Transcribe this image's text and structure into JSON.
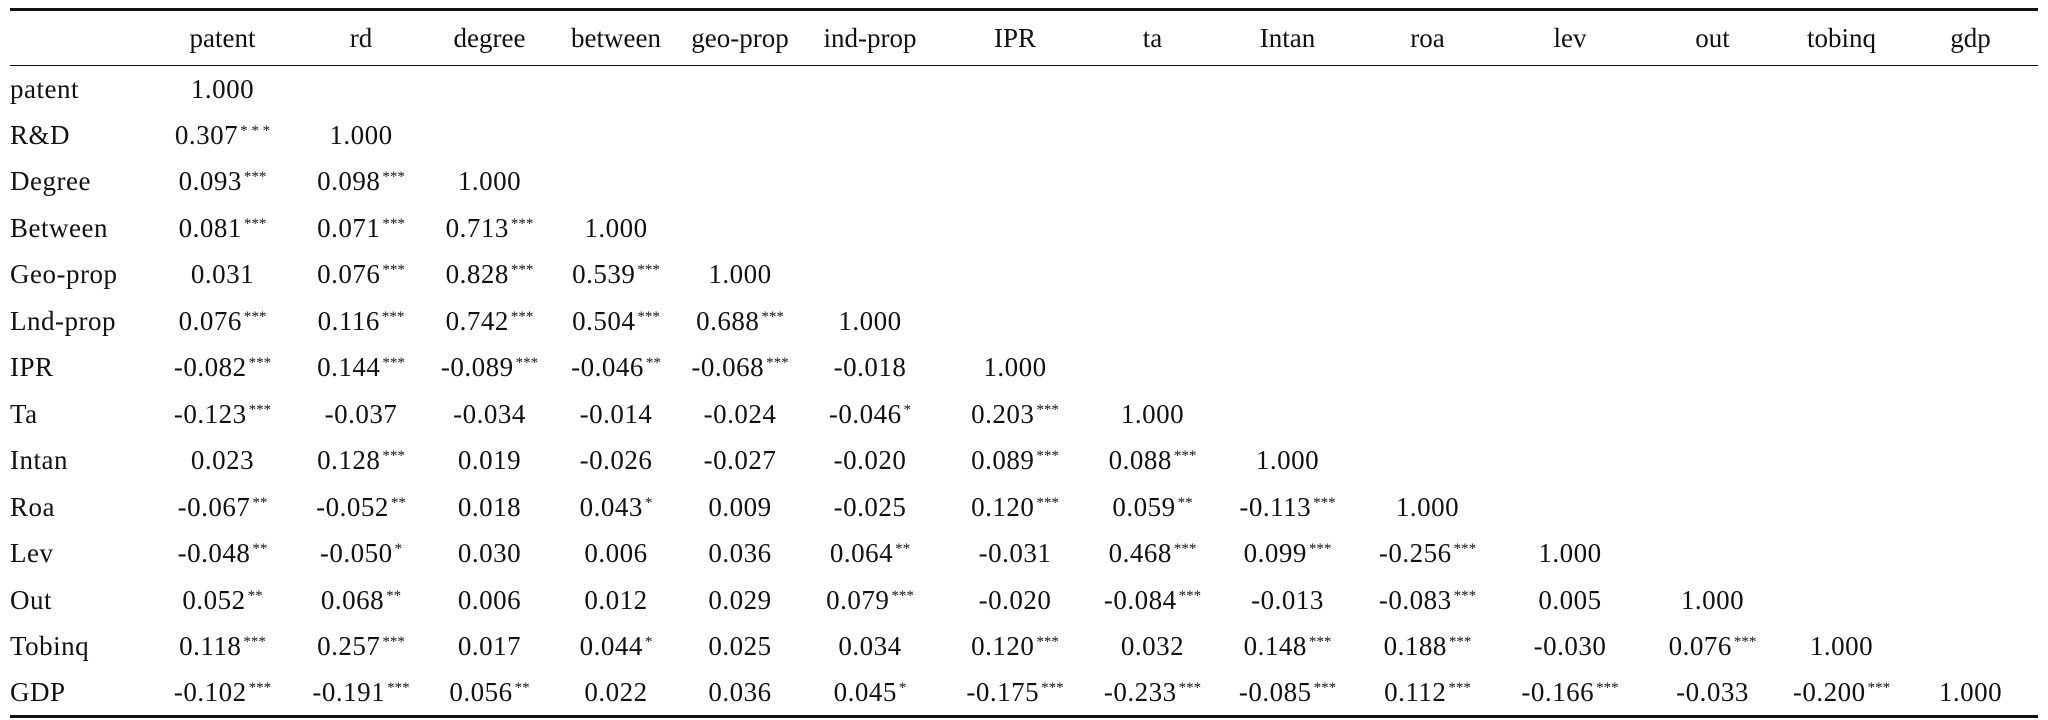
{
  "table": {
    "row_header_label": "",
    "columns": [
      "patent",
      "rd",
      "degree",
      "between",
      "geo-prop",
      "ind-prop",
      "IPR",
      "ta",
      "Intan",
      "roa",
      "lev",
      "out",
      "tobinq",
      "gdp"
    ],
    "rows": [
      {
        "label": "patent",
        "cells": [
          {
            "v": "1.000",
            "s": ""
          }
        ]
      },
      {
        "label": "R&D",
        "cells": [
          {
            "v": "0.307",
            "s": "* * *"
          },
          {
            "v": "1.000",
            "s": ""
          }
        ]
      },
      {
        "label": "Degree",
        "cells": [
          {
            "v": "0.093",
            "s": "***"
          },
          {
            "v": "0.098",
            "s": "***"
          },
          {
            "v": "1.000",
            "s": ""
          }
        ]
      },
      {
        "label": "Between",
        "cells": [
          {
            "v": "0.081",
            "s": "***"
          },
          {
            "v": "0.071",
            "s": "***"
          },
          {
            "v": "0.713",
            "s": "***"
          },
          {
            "v": "1.000",
            "s": ""
          }
        ]
      },
      {
        "label": "Geo-prop",
        "cells": [
          {
            "v": "0.031",
            "s": ""
          },
          {
            "v": "0.076",
            "s": "***"
          },
          {
            "v": "0.828",
            "s": "***"
          },
          {
            "v": "0.539",
            "s": "***"
          },
          {
            "v": "1.000",
            "s": ""
          }
        ]
      },
      {
        "label": "Lnd-prop",
        "cells": [
          {
            "v": "0.076",
            "s": "***"
          },
          {
            "v": "0.116",
            "s": "***"
          },
          {
            "v": "0.742",
            "s": "***"
          },
          {
            "v": "0.504",
            "s": "***"
          },
          {
            "v": "0.688",
            "s": "***"
          },
          {
            "v": "1.000",
            "s": ""
          }
        ]
      },
      {
        "label": "IPR",
        "cells": [
          {
            "v": "-0.082",
            "s": "***"
          },
          {
            "v": "0.144",
            "s": "***"
          },
          {
            "v": "-0.089",
            "s": "***"
          },
          {
            "v": "-0.046",
            "s": "**"
          },
          {
            "v": "-0.068",
            "s": "***"
          },
          {
            "v": "-0.018",
            "s": ""
          },
          {
            "v": "1.000",
            "s": ""
          }
        ]
      },
      {
        "label": "Ta",
        "cells": [
          {
            "v": "-0.123",
            "s": "***"
          },
          {
            "v": "-0.037",
            "s": ""
          },
          {
            "v": "-0.034",
            "s": ""
          },
          {
            "v": "-0.014",
            "s": ""
          },
          {
            "v": "-0.024",
            "s": ""
          },
          {
            "v": "-0.046",
            "s": "*"
          },
          {
            "v": "0.203",
            "s": "***"
          },
          {
            "v": "1.000",
            "s": ""
          }
        ]
      },
      {
        "label": "Intan",
        "cells": [
          {
            "v": "0.023",
            "s": ""
          },
          {
            "v": "0.128",
            "s": "***"
          },
          {
            "v": "0.019",
            "s": ""
          },
          {
            "v": "-0.026",
            "s": ""
          },
          {
            "v": "-0.027",
            "s": ""
          },
          {
            "v": "-0.020",
            "s": ""
          },
          {
            "v": "0.089",
            "s": "***"
          },
          {
            "v": "0.088",
            "s": "***"
          },
          {
            "v": "1.000",
            "s": ""
          }
        ]
      },
      {
        "label": "Roa",
        "cells": [
          {
            "v": "-0.067",
            "s": "**"
          },
          {
            "v": "-0.052",
            "s": "**"
          },
          {
            "v": "0.018",
            "s": ""
          },
          {
            "v": "0.043",
            "s": "*"
          },
          {
            "v": "0.009",
            "s": ""
          },
          {
            "v": "-0.025",
            "s": ""
          },
          {
            "v": "0.120",
            "s": "***"
          },
          {
            "v": "0.059",
            "s": "**"
          },
          {
            "v": "-0.113",
            "s": "***"
          },
          {
            "v": "1.000",
            "s": ""
          }
        ]
      },
      {
        "label": "Lev",
        "cells": [
          {
            "v": "-0.048",
            "s": "**"
          },
          {
            "v": "-0.050",
            "s": "*"
          },
          {
            "v": "0.030",
            "s": ""
          },
          {
            "v": "0.006",
            "s": ""
          },
          {
            "v": "0.036",
            "s": ""
          },
          {
            "v": "0.064",
            "s": "**"
          },
          {
            "v": "-0.031",
            "s": ""
          },
          {
            "v": "0.468",
            "s": "***"
          },
          {
            "v": "0.099",
            "s": "***"
          },
          {
            "v": "-0.256",
            "s": "***"
          },
          {
            "v": "1.000",
            "s": ""
          }
        ]
      },
      {
        "label": "Out",
        "cells": [
          {
            "v": "0.052",
            "s": "**"
          },
          {
            "v": "0.068",
            "s": "**"
          },
          {
            "v": "0.006",
            "s": ""
          },
          {
            "v": "0.012",
            "s": ""
          },
          {
            "v": "0.029",
            "s": ""
          },
          {
            "v": "0.079",
            "s": "***"
          },
          {
            "v": "-0.020",
            "s": ""
          },
          {
            "v": "-0.084",
            "s": "***"
          },
          {
            "v": "-0.013",
            "s": ""
          },
          {
            "v": "-0.083",
            "s": "***"
          },
          {
            "v": "0.005",
            "s": ""
          },
          {
            "v": "1.000",
            "s": ""
          }
        ]
      },
      {
        "label": "Tobinq",
        "cells": [
          {
            "v": "0.118",
            "s": "***"
          },
          {
            "v": "0.257",
            "s": "***"
          },
          {
            "v": "0.017",
            "s": ""
          },
          {
            "v": "0.044",
            "s": "*"
          },
          {
            "v": "0.025",
            "s": ""
          },
          {
            "v": "0.034",
            "s": ""
          },
          {
            "v": "0.120",
            "s": "***"
          },
          {
            "v": "0.032",
            "s": ""
          },
          {
            "v": "0.148",
            "s": "***"
          },
          {
            "v": "0.188",
            "s": "***"
          },
          {
            "v": "-0.030",
            "s": ""
          },
          {
            "v": "0.076",
            "s": "***"
          },
          {
            "v": "1.000",
            "s": ""
          }
        ]
      },
      {
        "label": "GDP",
        "cells": [
          {
            "v": "-0.102",
            "s": "***"
          },
          {
            "v": "-0.191",
            "s": "***"
          },
          {
            "v": "0.056",
            "s": "**"
          },
          {
            "v": "0.022",
            "s": ""
          },
          {
            "v": "0.036",
            "s": ""
          },
          {
            "v": "0.045",
            "s": "*"
          },
          {
            "v": "-0.175",
            "s": "***"
          },
          {
            "v": "-0.233",
            "s": "***"
          },
          {
            "v": "-0.085",
            "s": "***"
          },
          {
            "v": "0.112",
            "s": "***"
          },
          {
            "v": "-0.166",
            "s": "***"
          },
          {
            "v": "-0.033",
            "s": ""
          },
          {
            "v": "-0.200",
            "s": "***"
          },
          {
            "v": "1.000",
            "s": ""
          }
        ]
      }
    ]
  }
}
